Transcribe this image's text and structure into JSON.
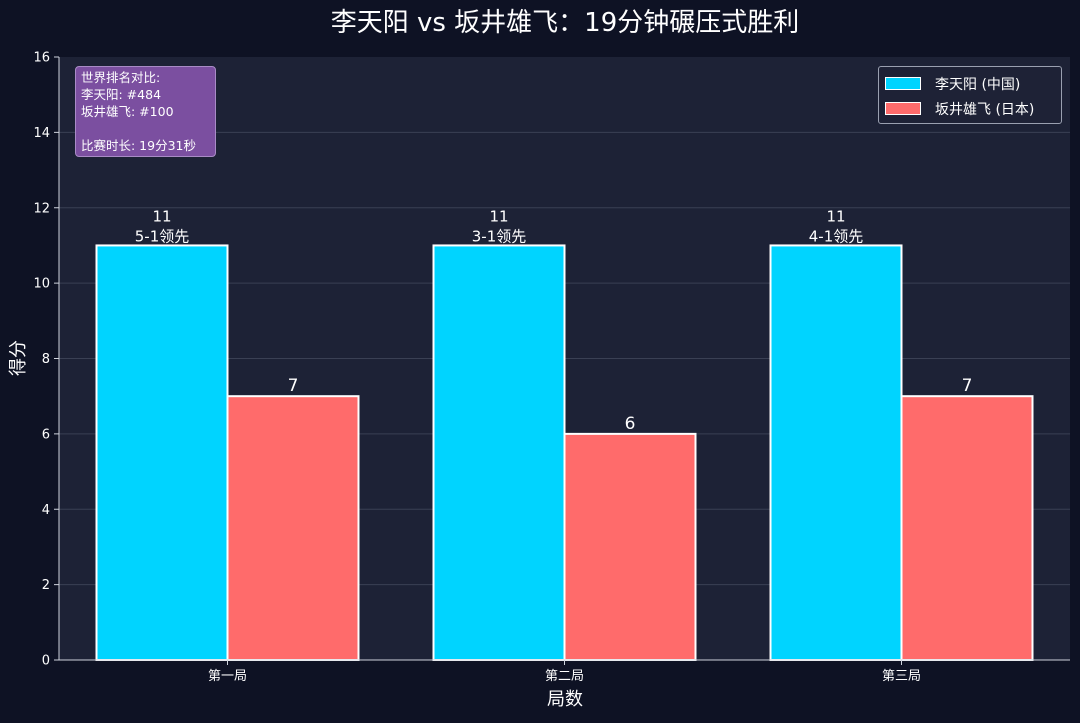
{
  "chart_data": {
    "type": "bar",
    "title": "李天阳 vs 坂井雄飞：19分钟碾压式胜利",
    "xlabel": "局数",
    "ylabel": "得分",
    "categories": [
      "第一局",
      "第二局",
      "第三局"
    ],
    "ylim": [
      0,
      16
    ],
    "yticks": [
      0,
      2,
      4,
      6,
      8,
      10,
      12,
      14,
      16
    ],
    "grid": true,
    "legend_position": "top-right",
    "series": [
      {
        "name": "李天阳 (中国)",
        "color": "#00d4ff",
        "values": [
          11,
          11,
          11
        ],
        "annotations": [
          "5-1领先",
          "3-1领先",
          "4-1领先"
        ]
      },
      {
        "name": "坂井雄飞 (日本)",
        "color": "#ff6b6b",
        "values": [
          7,
          6,
          7
        ]
      }
    ]
  },
  "info_box": {
    "line1": "世界排名对比:",
    "line2": "李天阳: #484",
    "line3": "坂井雄飞: #100",
    "line4": "比赛时长: 19分31秒"
  },
  "colors": {
    "background": "#0e1224",
    "plot_background": "#1d2236",
    "grid": "#3a4054",
    "text": "#ffffff",
    "info_box": "#7b4fa0"
  }
}
